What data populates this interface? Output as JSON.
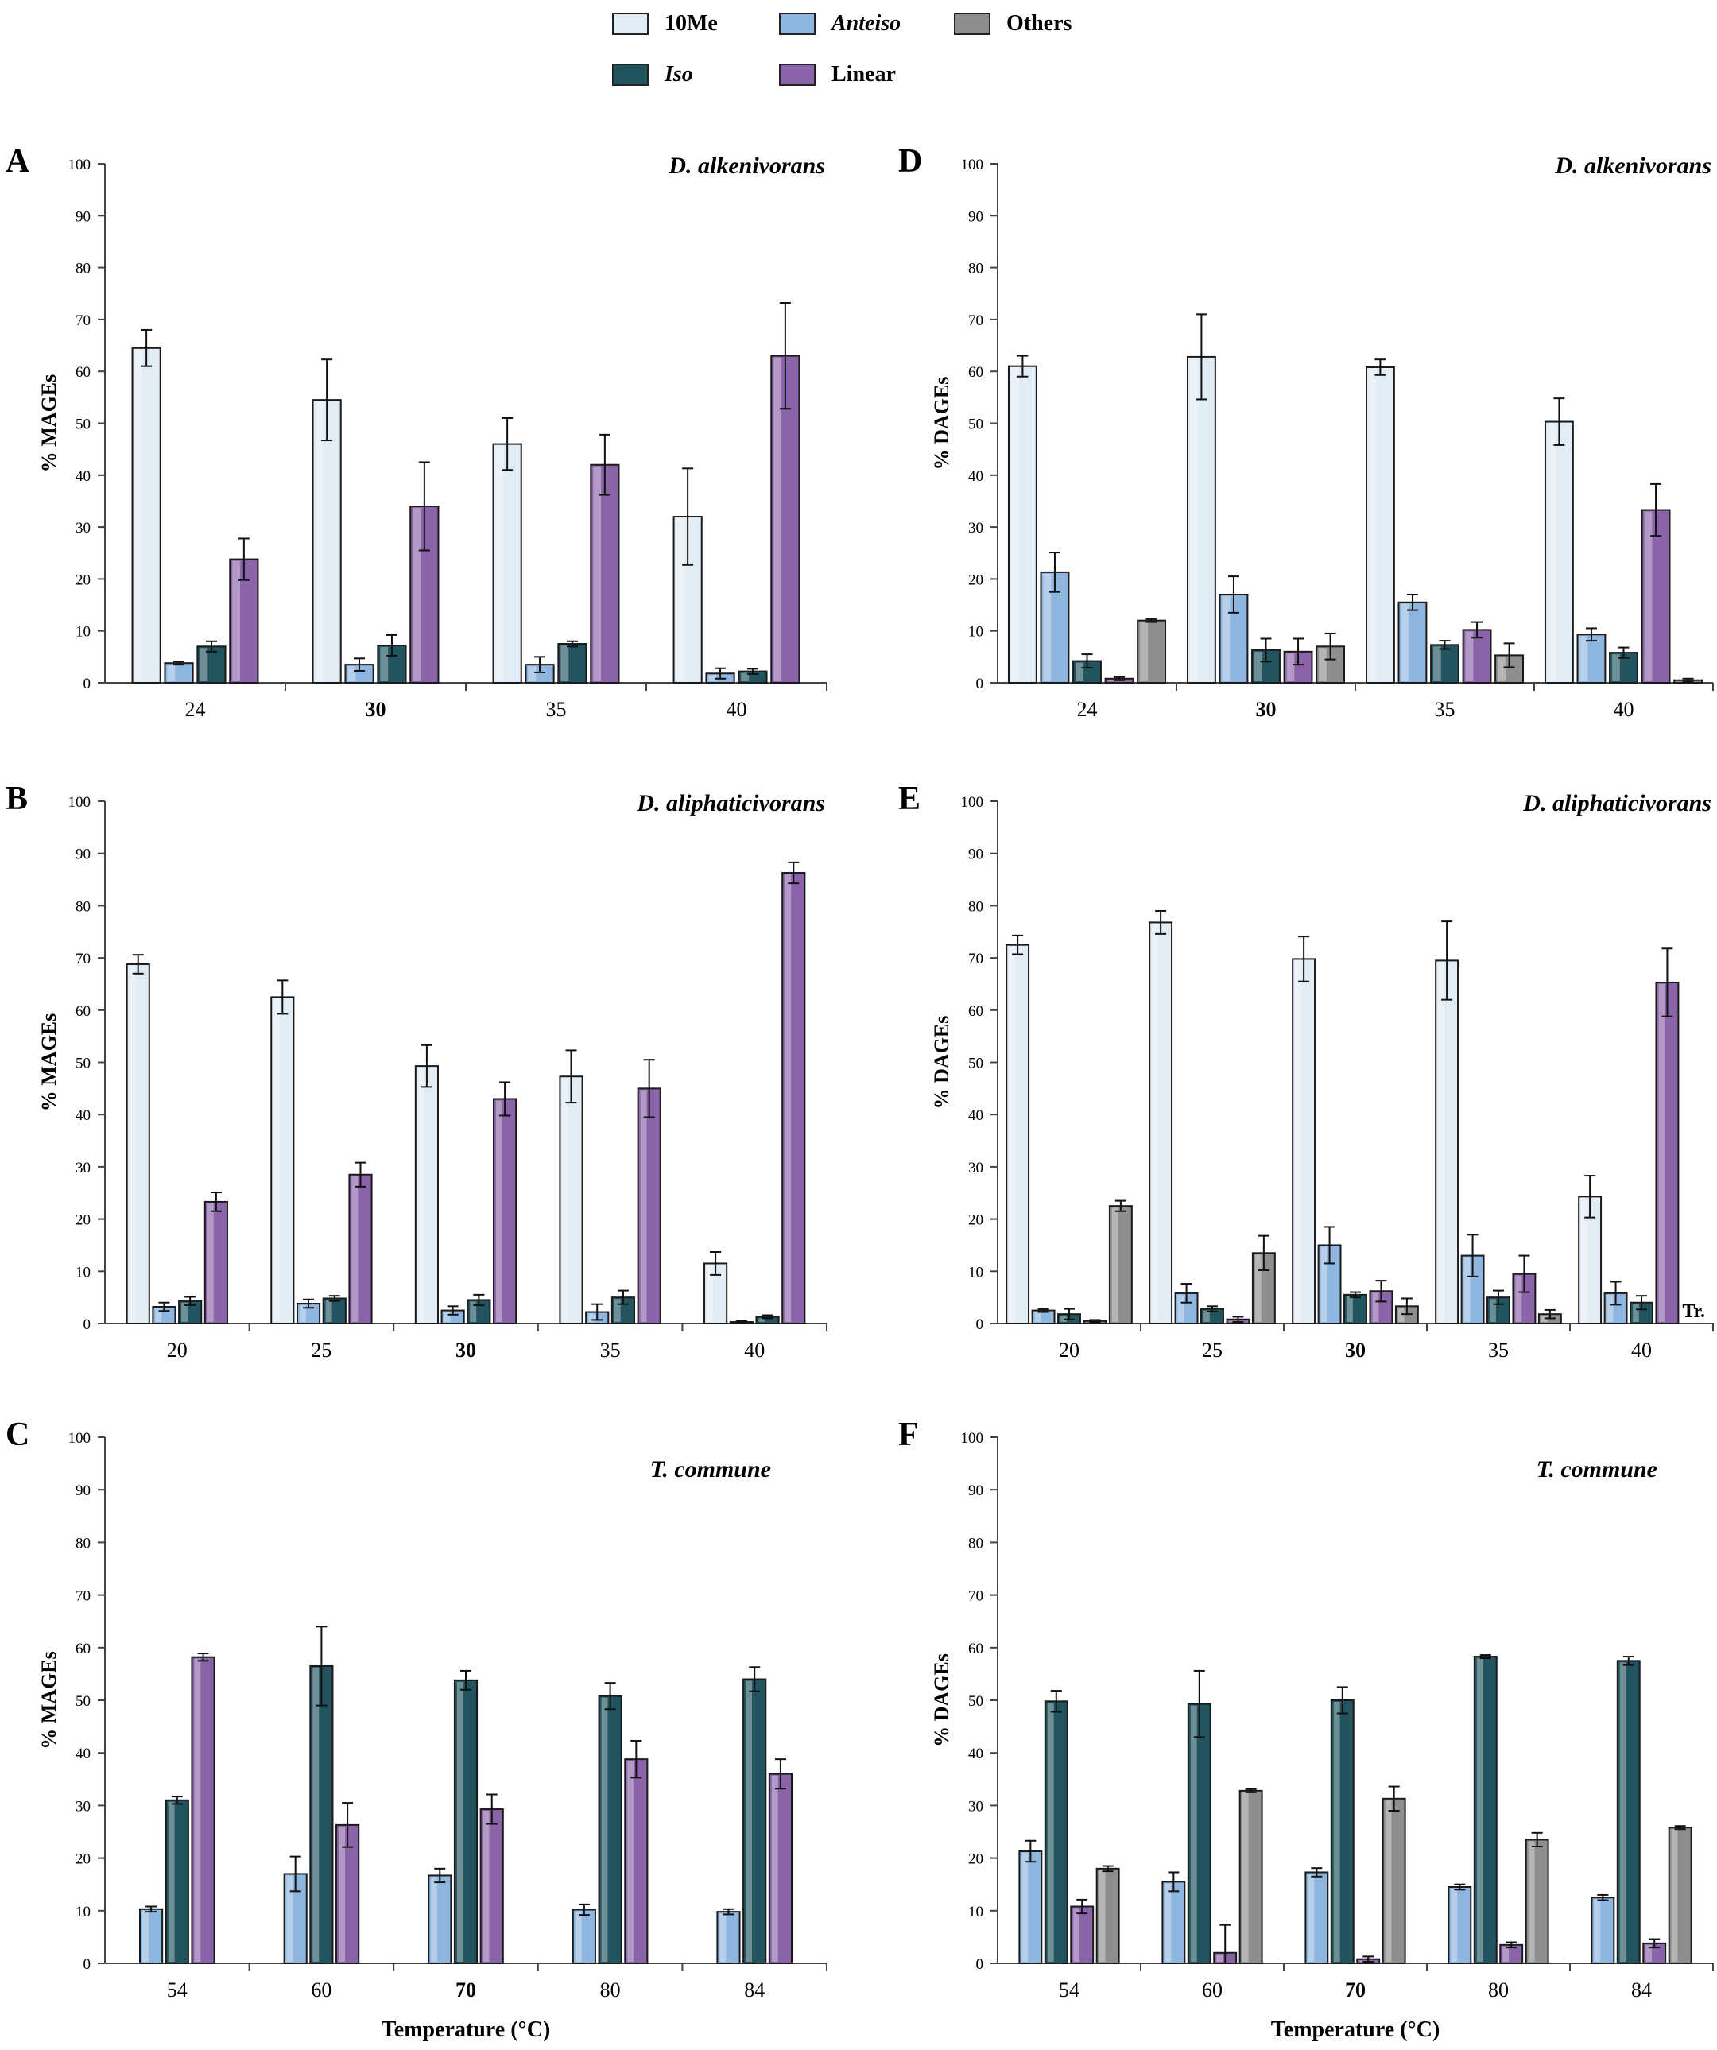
{
  "legend": [
    {
      "name": "10Me",
      "color": "#e2ecf5",
      "italic": false
    },
    {
      "name": "Anteiso",
      "color": "#8fb6df",
      "italic": true
    },
    {
      "name": "Others",
      "color": "#8e8e8e",
      "italic": false
    },
    {
      "name": "Iso",
      "color": "#21545e",
      "italic": true
    },
    {
      "name": "Linear",
      "color": "#8a63a8",
      "italic": false
    }
  ],
  "series_colors": {
    "10Me": "#e2ecf5",
    "Anteiso": "#8fb6df",
    "Iso": "#21545e",
    "Linear": "#8a63a8",
    "Others": "#8e8e8e"
  },
  "xaxis_label": "Temperature (°C)",
  "chart_data": [
    {
      "panel": "A",
      "type": "bar",
      "title": "D. alkenivorans",
      "ylabel": "% MAGEs",
      "ylim": [
        0,
        100
      ],
      "yticks": [
        0,
        10,
        20,
        30,
        40,
        50,
        60,
        70,
        80,
        90,
        100
      ],
      "categories": [
        "24",
        "30",
        "35",
        "40"
      ],
      "bold_category": "30",
      "series_order": [
        "10Me",
        "Anteiso",
        "Iso",
        "Linear",
        "Others"
      ],
      "series": [
        {
          "name": "10Me",
          "values": [
            64.5,
            54.5,
            46,
            32
          ],
          "errors": [
            3.5,
            7.8,
            5,
            9.3
          ]
        },
        {
          "name": "Anteiso",
          "values": [
            3.8,
            3.5,
            3.5,
            1.8
          ],
          "errors": [
            0.3,
            1.2,
            1.5,
            1
          ]
        },
        {
          "name": "Iso",
          "values": [
            7,
            7.2,
            7.5,
            2.2
          ],
          "errors": [
            1,
            2,
            0.5,
            0.5
          ]
        },
        {
          "name": "Linear",
          "values": [
            23.8,
            34,
            42,
            63
          ],
          "errors": [
            4,
            8.5,
            5.8,
            10.2
          ]
        },
        {
          "name": "Others",
          "values": [
            null,
            null,
            null,
            null
          ],
          "errors": [
            0,
            0,
            0,
            0
          ]
        }
      ]
    },
    {
      "panel": "B",
      "type": "bar",
      "title": "D. aliphaticivorans",
      "ylabel": "% MAGEs",
      "ylim": [
        0,
        100
      ],
      "yticks": [
        0,
        10,
        20,
        30,
        40,
        50,
        60,
        70,
        80,
        90,
        100
      ],
      "categories": [
        "20",
        "25",
        "30",
        "35",
        "40"
      ],
      "bold_category": "30",
      "series_order": [
        "10Me",
        "Anteiso",
        "Iso",
        "Linear",
        "Others"
      ],
      "series": [
        {
          "name": "10Me",
          "values": [
            68.8,
            62.5,
            49.3,
            47.3,
            11.5
          ],
          "errors": [
            1.8,
            3.2,
            4,
            5,
            2.2
          ]
        },
        {
          "name": "Anteiso",
          "values": [
            3.2,
            3.8,
            2.5,
            2.2,
            0.3
          ],
          "errors": [
            0.8,
            0.8,
            0.8,
            1.5,
            0.2
          ]
        },
        {
          "name": "Iso",
          "values": [
            4.3,
            4.8,
            4.5,
            5,
            1.3
          ],
          "errors": [
            0.8,
            0.5,
            1,
            1.3,
            0.3
          ]
        },
        {
          "name": "Linear",
          "values": [
            23.3,
            28.5,
            43,
            45,
            86.3
          ],
          "errors": [
            1.8,
            2.3,
            3.2,
            5.5,
            2
          ]
        },
        {
          "name": "Others",
          "values": [
            null,
            null,
            null,
            null,
            null
          ],
          "errors": [
            0,
            0,
            0,
            0,
            0
          ]
        }
      ]
    },
    {
      "panel": "C",
      "type": "bar",
      "title": "T. commune",
      "ylabel": "% MAGEs",
      "ylim": [
        0,
        100
      ],
      "yticks": [
        0,
        10,
        20,
        30,
        40,
        50,
        60,
        70,
        80,
        90,
        100
      ],
      "categories": [
        "54",
        "60",
        "70",
        "80",
        "84"
      ],
      "bold_category": "70",
      "series_order": [
        "10Me",
        "Anteiso",
        "Iso",
        "Linear",
        "Others"
      ],
      "series": [
        {
          "name": "10Me",
          "values": [
            null,
            null,
            null,
            null,
            null
          ],
          "errors": [
            0,
            0,
            0,
            0,
            0
          ]
        },
        {
          "name": "Anteiso",
          "values": [
            10.3,
            17,
            16.7,
            10.2,
            9.8
          ],
          "errors": [
            0.5,
            3.3,
            1.3,
            1,
            0.5
          ]
        },
        {
          "name": "Iso",
          "values": [
            31,
            56.5,
            53.8,
            50.8,
            54
          ],
          "errors": [
            0.7,
            7.5,
            1.8,
            2.5,
            2.3
          ]
        },
        {
          "name": "Linear",
          "values": [
            58.2,
            26.3,
            29.3,
            38.8,
            36
          ],
          "errors": [
            0.7,
            4.2,
            2.8,
            3.5,
            2.8
          ]
        },
        {
          "name": "Others",
          "values": [
            null,
            null,
            null,
            null,
            null
          ],
          "errors": [
            0,
            0,
            0,
            0,
            0
          ]
        }
      ]
    },
    {
      "panel": "D",
      "type": "bar",
      "title": "D. alkenivorans",
      "ylabel": "% DAGEs",
      "ylim": [
        0,
        100
      ],
      "yticks": [
        0,
        10,
        20,
        30,
        40,
        50,
        60,
        70,
        80,
        90,
        100
      ],
      "categories": [
        "24",
        "30",
        "35",
        "40"
      ],
      "bold_category": "30",
      "series_order": [
        "10Me",
        "Anteiso",
        "Iso",
        "Linear",
        "Others"
      ],
      "series": [
        {
          "name": "10Me",
          "values": [
            61,
            62.8,
            60.8,
            50.3
          ],
          "errors": [
            2,
            8.2,
            1.5,
            4.5
          ]
        },
        {
          "name": "Anteiso",
          "values": [
            21.3,
            17,
            15.5,
            9.3
          ],
          "errors": [
            3.8,
            3.5,
            1.5,
            1.2
          ]
        },
        {
          "name": "Iso",
          "values": [
            4.2,
            6.3,
            7.3,
            5.8
          ],
          "errors": [
            1.3,
            2.2,
            0.8,
            1
          ]
        },
        {
          "name": "Linear",
          "values": [
            0.8,
            6,
            10.2,
            33.3
          ],
          "errors": [
            0.3,
            2.5,
            1.5,
            5
          ]
        },
        {
          "name": "Others",
          "values": [
            12,
            7,
            5.3,
            0.5
          ],
          "errors": [
            0.3,
            2.5,
            2.3,
            0.3
          ]
        }
      ]
    },
    {
      "panel": "E",
      "type": "bar",
      "title": "D. aliphaticivorans",
      "ylabel": "% DAGEs",
      "ylim": [
        0,
        100
      ],
      "yticks": [
        0,
        10,
        20,
        30,
        40,
        50,
        60,
        70,
        80,
        90,
        100
      ],
      "categories": [
        "20",
        "25",
        "30",
        "35",
        "40"
      ],
      "bold_category": "30",
      "series_order": [
        "10Me",
        "Anteiso",
        "Iso",
        "Linear",
        "Others"
      ],
      "annotation": "Tr.",
      "series": [
        {
          "name": "10Me",
          "values": [
            72.5,
            76.8,
            69.8,
            69.5,
            24.3
          ],
          "errors": [
            1.8,
            2.2,
            4.3,
            7.5,
            4
          ]
        },
        {
          "name": "Anteiso",
          "values": [
            2.5,
            5.8,
            15,
            13,
            5.8
          ],
          "errors": [
            0.3,
            1.8,
            3.5,
            4,
            2.2
          ]
        },
        {
          "name": "Iso",
          "values": [
            1.8,
            2.8,
            5.5,
            5,
            4
          ],
          "errors": [
            1,
            0.5,
            0.5,
            1.3,
            1.3
          ]
        },
        {
          "name": "Linear",
          "values": [
            0.5,
            0.8,
            6.2,
            9.5,
            65.3
          ],
          "errors": [
            0.2,
            0.5,
            2,
            3.5,
            6.5
          ]
        },
        {
          "name": "Others",
          "values": [
            22.5,
            13.5,
            3.3,
            1.8,
            null
          ],
          "errors": [
            1,
            3.3,
            1.5,
            0.8,
            0
          ]
        }
      ]
    },
    {
      "panel": "F",
      "type": "bar",
      "title": "T. commune",
      "ylabel": "% DAGEs",
      "ylim": [
        0,
        100
      ],
      "yticks": [
        0,
        10,
        20,
        30,
        40,
        50,
        60,
        70,
        80,
        90,
        100
      ],
      "categories": [
        "54",
        "60",
        "70",
        "80",
        "84"
      ],
      "bold_category": "70",
      "series_order": [
        "10Me",
        "Anteiso",
        "Iso",
        "Linear",
        "Others"
      ],
      "series": [
        {
          "name": "10Me",
          "values": [
            null,
            null,
            null,
            null,
            null
          ],
          "errors": [
            0,
            0,
            0,
            0,
            0
          ]
        },
        {
          "name": "Anteiso",
          "values": [
            21.3,
            15.5,
            17.3,
            14.5,
            12.5
          ],
          "errors": [
            2,
            1.8,
            0.8,
            0.5,
            0.5
          ]
        },
        {
          "name": "Iso",
          "values": [
            49.8,
            49.3,
            50,
            58.3,
            57.5
          ],
          "errors": [
            2,
            6.3,
            2.5,
            0.3,
            0.8
          ]
        },
        {
          "name": "Linear",
          "values": [
            10.8,
            2,
            0.8,
            3.5,
            3.8
          ],
          "errors": [
            1.3,
            5.3,
            0.5,
            0.5,
            0.8
          ]
        },
        {
          "name": "Others",
          "values": [
            18,
            32.8,
            31.3,
            23.5,
            25.8
          ],
          "errors": [
            0.5,
            0.3,
            2.3,
            1.3,
            0.3
          ]
        }
      ]
    }
  ]
}
